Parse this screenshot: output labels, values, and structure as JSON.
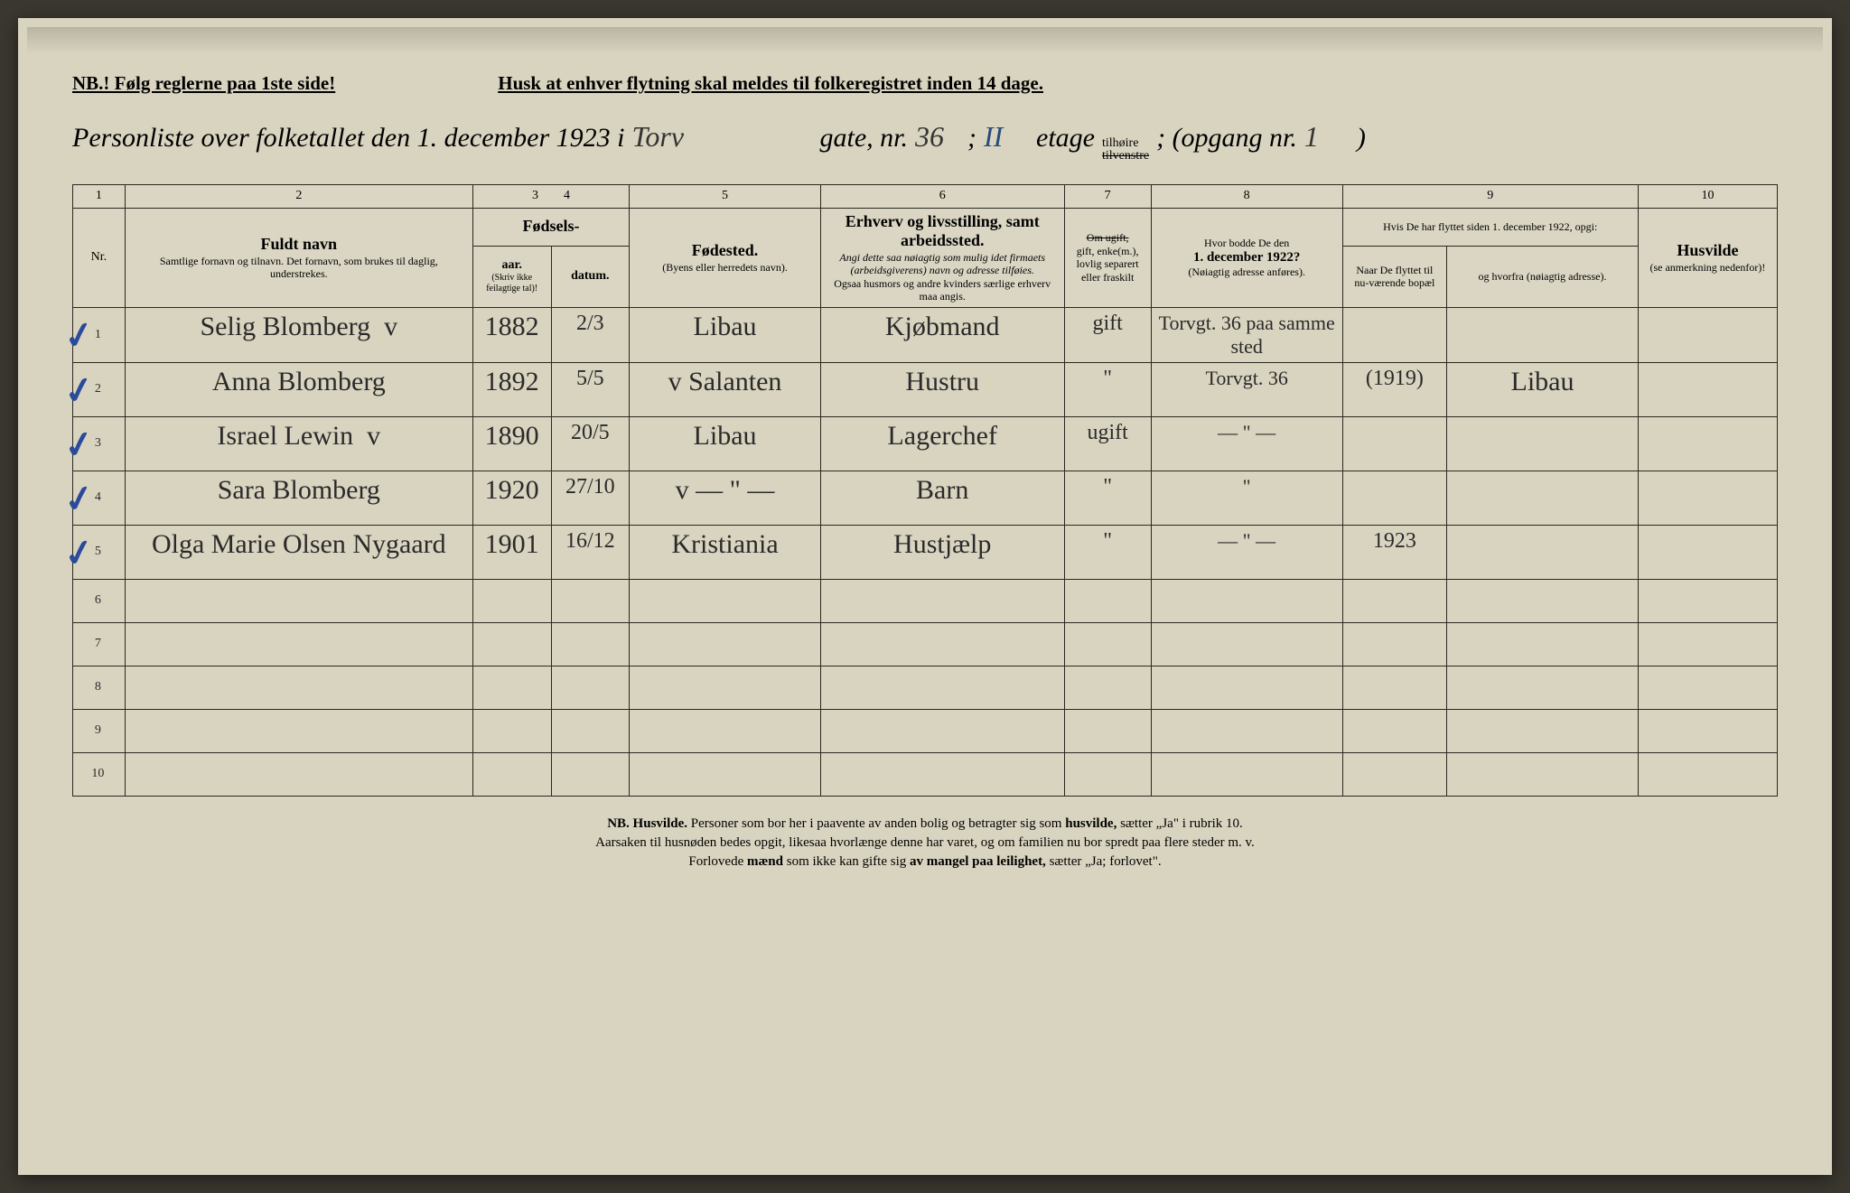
{
  "top": {
    "nb": "NB.! Følg reglerne paa 1ste side!",
    "reminder": "Husk at enhver flytning skal meldes til folkeregistret inden 14 dage."
  },
  "title": {
    "prefix": "Personliste over folketallet den 1. december 1923 i",
    "street": "Torv",
    "gate_label": "gate, nr.",
    "nr": "36",
    "semicolon": ";",
    "etage_nr": "II",
    "etage_label": "etage",
    "side_top": "tilhøire",
    "side_bottom": "tilvenstre",
    "opgang_label": "; (opgang nr.",
    "opgang": "1",
    "close": ")"
  },
  "colnums": [
    "1",
    "2",
    "3",
    "4",
    "5",
    "6",
    "7",
    "8",
    "9",
    "10"
  ],
  "headers": {
    "nr": "Nr.",
    "fullname_main": "Fuldt navn",
    "fullname_sub": "Samtlige fornavn og tilnavn. Det fornavn, som brukes til daglig, understrekes.",
    "fodsels": "Fødsels-",
    "aar": "aar.",
    "datum": "datum.",
    "aar_note": "(Skriv ikke feilagtige tal)!",
    "fodested_main": "Fødested.",
    "fodested_sub": "(Byens eller herredets navn).",
    "erhverv_main": "Erhverv og livsstilling, samt arbeidssted.",
    "erhverv_sub": "Angi dette saa nøiagtig som mulig idet firmaets (arbeidsgiverens) navn og adresse tilføies.",
    "erhverv_sub2": "Ogsaa husmors og andre kvinders særlige erhverv maa angis.",
    "status_top": "Om ugift,",
    "status": "gift, enke(m.), lovlig separert eller fraskilt",
    "addr1922_main": "Hvor bodde De den",
    "addr1922_date": "1. december 1922?",
    "addr1922_sub": "(Nøiagtig adresse anføres).",
    "moved_main": "Hvis De har flyttet siden 1. december 1922, opgi:",
    "moved_when": "Naar De flyttet til nu-værende bopæl",
    "moved_from": "og hvorfra (nøiagtig adresse).",
    "husvilde_main": "Husvilde",
    "husvilde_sub": "(se anmerkning nedenfor)!"
  },
  "rows": [
    {
      "nr": "1",
      "check": true,
      "name": "Selig Blomberg",
      "v": "v",
      "year": "1882",
      "date": "2/3",
      "birthplace": "Libau",
      "occupation": "Kjøbmand",
      "status": "gift",
      "addr1922": "Torvgt. 36 paa samme sted",
      "moved_when": "",
      "moved_from": "",
      "husvilde": ""
    },
    {
      "nr": "2",
      "check": true,
      "name": "Anna Blomberg",
      "v": "",
      "year": "1892",
      "date": "5/5",
      "birthplace": "Salanten",
      "bpv": "v",
      "occupation": "Hustru",
      "status": "\"",
      "addr1922": "Torvgt. 36",
      "moved_when": "(1919)",
      "moved_from": "Libau",
      "husvilde": ""
    },
    {
      "nr": "3",
      "check": true,
      "name": "Israel Lewin",
      "v": "v",
      "year": "1890",
      "date": "20/5",
      "birthplace": "Libau",
      "occupation": "Lagerchef",
      "status": "ugift",
      "addr1922": "— \" —",
      "moved_when": "",
      "moved_from": "",
      "husvilde": ""
    },
    {
      "nr": "4",
      "check": true,
      "name": "Sara Blomberg",
      "v": "",
      "year": "1920",
      "date": "27/10",
      "birthplace": "— \" —",
      "bpv": "v",
      "occupation": "Barn",
      "status": "\"",
      "addr1922": "\"",
      "moved_when": "",
      "moved_from": "",
      "husvilde": ""
    },
    {
      "nr": "5",
      "check": true,
      "name": "Olga Marie Olsen Nygaard",
      "v": "",
      "year": "1901",
      "date": "16/12",
      "birthplace": "Kristiania",
      "occupation": "Hustjælp",
      "status": "\"",
      "addr1922": "— \" —",
      "moved_when": "1923",
      "moved_from": "",
      "husvilde": ""
    }
  ],
  "empty_rows": [
    "6",
    "7",
    "8",
    "9",
    "10"
  ],
  "footer": {
    "l1a": "NB. Husvilde.",
    "l1b": " Personer som bor her i paavente av anden bolig og betragter sig som ",
    "l1c": "husvilde,",
    "l1d": " sætter „Ja\" i rubrik 10.",
    "l2": "Aarsaken til husnøden bedes opgit, likesaa hvorlænge denne har varet, og om familien nu bor spredt paa flere steder m. v.",
    "l3a": "Forlovede ",
    "l3b": "mænd",
    "l3c": " som ikke kan gifte sig ",
    "l3d": "av mangel paa leilighet,",
    "l3e": " sætter „Ja; forlovet\"."
  }
}
